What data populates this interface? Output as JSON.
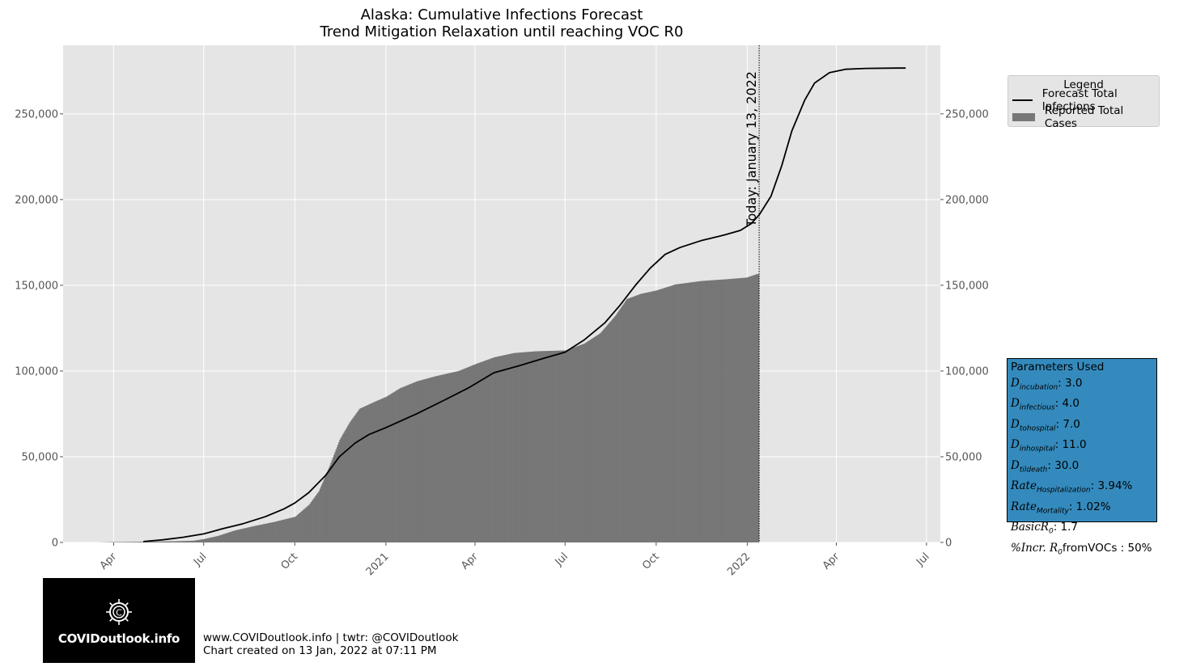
{
  "chart_data": {
    "type": "area",
    "title": "Alaska: Cumulative Infections Forecast",
    "subtitle": "Trend Mitigation Relaxation until reaching VOC R0",
    "xlabel": "",
    "ylabel": "",
    "x_axis": "date",
    "xlim": [
      "2020-02-10",
      "2022-07-15"
    ],
    "ylim": [
      0,
      290000
    ],
    "grid": true,
    "x_ticks": [
      {
        "date": "2020-04-01",
        "label": "Apr"
      },
      {
        "date": "2020-07-01",
        "label": "Jul"
      },
      {
        "date": "2020-10-01",
        "label": "Oct"
      },
      {
        "date": "2021-01-01",
        "label": "2021"
      },
      {
        "date": "2021-04-01",
        "label": "Apr"
      },
      {
        "date": "2021-07-01",
        "label": "Jul"
      },
      {
        "date": "2021-10-01",
        "label": "Oct"
      },
      {
        "date": "2022-01-01",
        "label": "2022"
      },
      {
        "date": "2022-04-01",
        "label": "Apr"
      },
      {
        "date": "2022-07-01",
        "label": "Jul"
      }
    ],
    "y_ticks": [
      {
        "value": 0,
        "label": "0"
      },
      {
        "value": 50000,
        "label": "50,000"
      },
      {
        "value": 100000,
        "label": "100,000"
      },
      {
        "value": 150000,
        "label": "150,000"
      },
      {
        "value": 200000,
        "label": "200,000"
      },
      {
        "value": 250000,
        "label": "250,000"
      }
    ],
    "today_line": {
      "date": "2022-01-13",
      "label": "Today: January 13, 2022"
    },
    "legend": {
      "title": "Legend",
      "placement": "outside-top-right"
    },
    "series": [
      {
        "name": "Forecast Total Infections",
        "kind": "line",
        "color": "#000000",
        "points": [
          [
            "2020-05-01",
            500
          ],
          [
            "2020-05-20",
            1500
          ],
          [
            "2020-06-10",
            3000
          ],
          [
            "2020-07-01",
            5000
          ],
          [
            "2020-07-20",
            8000
          ],
          [
            "2020-08-10",
            11000
          ],
          [
            "2020-09-01",
            15000
          ],
          [
            "2020-09-20",
            19500
          ],
          [
            "2020-10-01",
            23000
          ],
          [
            "2020-10-15",
            29000
          ],
          [
            "2020-11-01",
            39000
          ],
          [
            "2020-11-15",
            50000
          ],
          [
            "2020-12-01",
            58000
          ],
          [
            "2020-12-15",
            63000
          ],
          [
            "2021-01-01",
            67000
          ],
          [
            "2021-02-01",
            75000
          ],
          [
            "2021-03-01",
            83000
          ],
          [
            "2021-03-25",
            90000
          ],
          [
            "2021-04-20",
            99000
          ],
          [
            "2021-05-15",
            103000
          ],
          [
            "2021-06-10",
            107500
          ],
          [
            "2021-07-01",
            111000
          ],
          [
            "2021-07-20",
            118000
          ],
          [
            "2021-08-10",
            128000
          ],
          [
            "2021-08-25",
            138000
          ],
          [
            "2021-09-10",
            150000
          ],
          [
            "2021-09-25",
            160000
          ],
          [
            "2021-10-10",
            168000
          ],
          [
            "2021-10-25",
            172000
          ],
          [
            "2021-11-15",
            176000
          ],
          [
            "2021-12-10",
            179500
          ],
          [
            "2021-12-25",
            182000
          ],
          [
            "2022-01-05",
            186000
          ],
          [
            "2022-01-13",
            191000
          ],
          [
            "2022-01-25",
            202000
          ],
          [
            "2022-02-05",
            220000
          ],
          [
            "2022-02-15",
            240000
          ],
          [
            "2022-02-28",
            258000
          ],
          [
            "2022-03-10",
            268000
          ],
          [
            "2022-03-25",
            274000
          ],
          [
            "2022-04-10",
            276000
          ],
          [
            "2022-05-01",
            276500
          ],
          [
            "2022-06-01",
            276700
          ],
          [
            "2022-06-10",
            276700
          ]
        ]
      },
      {
        "name": "Reported Total Cases",
        "kind": "bar",
        "color": "#777777",
        "points": [
          [
            "2020-03-15",
            0
          ],
          [
            "2020-04-01",
            200
          ],
          [
            "2020-05-01",
            400
          ],
          [
            "2020-06-01",
            700
          ],
          [
            "2020-06-20",
            1000
          ],
          [
            "2020-07-01",
            2000
          ],
          [
            "2020-07-15",
            3800
          ],
          [
            "2020-08-01",
            7000
          ],
          [
            "2020-08-20",
            9500
          ],
          [
            "2020-09-10",
            12000
          ],
          [
            "2020-10-01",
            15000
          ],
          [
            "2020-10-15",
            22000
          ],
          [
            "2020-10-25",
            30000
          ],
          [
            "2020-11-05",
            45000
          ],
          [
            "2020-11-15",
            60000
          ],
          [
            "2020-11-25",
            70000
          ],
          [
            "2020-12-05",
            78000
          ],
          [
            "2020-12-20",
            82000
          ],
          [
            "2021-01-01",
            85000
          ],
          [
            "2021-01-15",
            90000
          ],
          [
            "2021-02-01",
            94000
          ],
          [
            "2021-02-20",
            97000
          ],
          [
            "2021-03-15",
            100000
          ],
          [
            "2021-04-01",
            104000
          ],
          [
            "2021-04-20",
            108000
          ],
          [
            "2021-05-10",
            110500
          ],
          [
            "2021-06-01",
            111500
          ],
          [
            "2021-07-01",
            112000
          ],
          [
            "2021-07-20",
            116000
          ],
          [
            "2021-08-05",
            122000
          ],
          [
            "2021-08-20",
            132000
          ],
          [
            "2021-09-01",
            142000
          ],
          [
            "2021-09-15",
            145000
          ],
          [
            "2021-10-01",
            147000
          ],
          [
            "2021-10-20",
            150500
          ],
          [
            "2021-11-15",
            152500
          ],
          [
            "2021-12-10",
            153500
          ],
          [
            "2021-12-31",
            154500
          ],
          [
            "2022-01-10",
            156500
          ]
        ]
      }
    ]
  },
  "parameters": {
    "title": "Parameters Used",
    "items": [
      {
        "name": "D",
        "sub": "incubation",
        "value": ": 3.0"
      },
      {
        "name": "D",
        "sub": "infectious",
        "value": ": 4.0"
      },
      {
        "name": "D",
        "sub": "tohospital",
        "value": ": 7.0"
      },
      {
        "name": "D",
        "sub": "inhospital",
        "value": ": 11.0"
      },
      {
        "name": "D",
        "sub": "tildeath",
        "value": ": 30.0"
      },
      {
        "name": "Rate",
        "sub": "Hospitalization",
        "value": ": 3.94%"
      },
      {
        "name": "Rate",
        "sub": "Mortality",
        "value": ": 1.02%"
      },
      {
        "name": "BasicR",
        "sub": "0",
        "value": ": 1.7"
      },
      {
        "name": "%Incr. R",
        "sub": "0",
        "value": "fromVOCs : 50%"
      }
    ]
  },
  "logo": {
    "text": "COVIDoutlook.info"
  },
  "footer": {
    "line1": "www.COVIDoutlook.info | twtr: @COVIDoutlook",
    "line2": "Chart created on 13 Jan, 2022 at 07:11 PM"
  }
}
